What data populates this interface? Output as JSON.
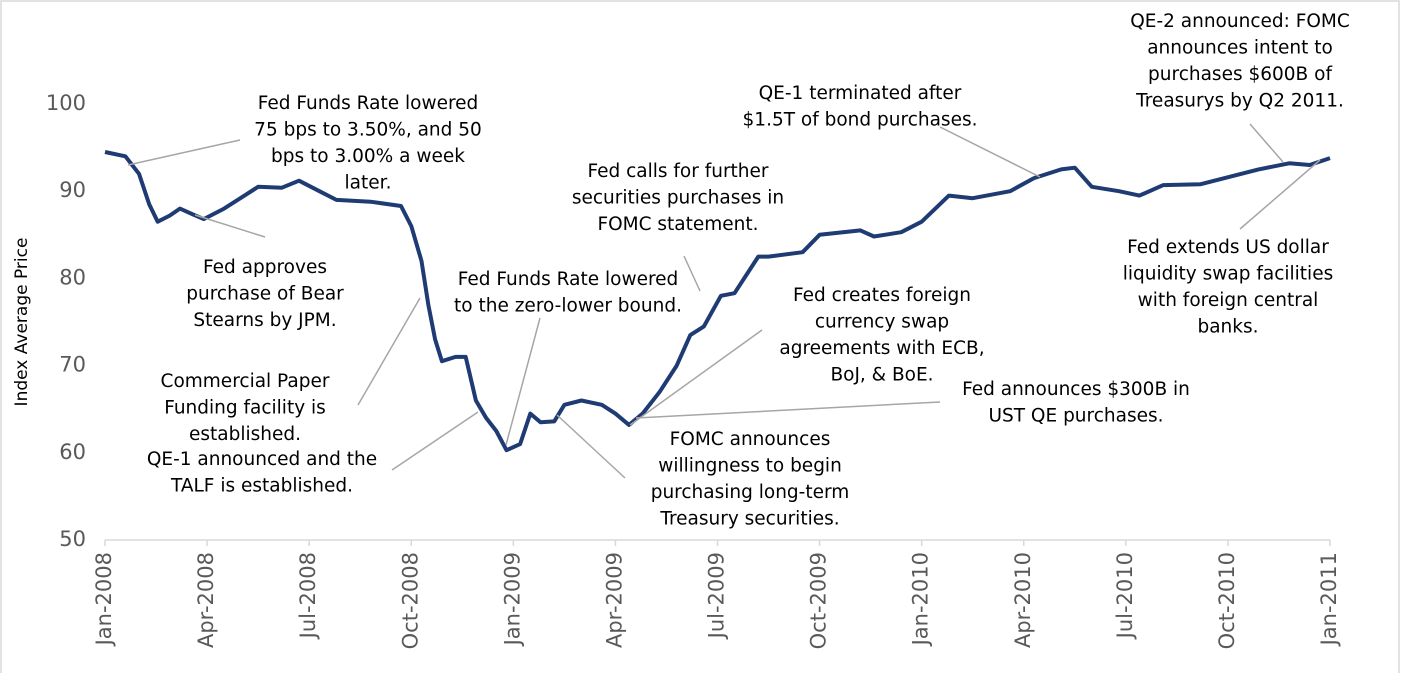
{
  "chart_data": {
    "type": "line",
    "ylabel": "Index Average Price",
    "color": "#1f3b73",
    "xlim": [
      0,
      36
    ],
    "xticks": [
      {
        "value": 0,
        "label": "Jan-2008"
      },
      {
        "value": 3,
        "label": "Apr-2008"
      },
      {
        "value": 6,
        "label": "Jul-2008"
      },
      {
        "value": 9,
        "label": "Oct-2008"
      },
      {
        "value": 12,
        "label": "Jan-2009"
      },
      {
        "value": 15,
        "label": "Apr-2009"
      },
      {
        "value": 18,
        "label": "Jul-2009"
      },
      {
        "value": 21,
        "label": "Oct-2009"
      },
      {
        "value": 24,
        "label": "Jan-2010"
      },
      {
        "value": 27,
        "label": "Apr-2010"
      },
      {
        "value": 30,
        "label": "Jul-2010"
      },
      {
        "value": 33,
        "label": "Oct-2010"
      },
      {
        "value": 36,
        "label": "Jan-2011"
      }
    ],
    "ylim": [
      50,
      100
    ],
    "yticks": [
      50,
      60,
      70,
      80,
      90,
      100
    ],
    "grid": false,
    "x": [
      0,
      0.6,
      1.0,
      1.3,
      1.55,
      1.9,
      2.2,
      2.6,
      2.9,
      3.5,
      4.1,
      4.5,
      5.2,
      5.7,
      6.3,
      6.8,
      7.8,
      8.7,
      9.0,
      9.3,
      9.5,
      9.7,
      9.9,
      10.3,
      10.6,
      10.9,
      11.2,
      11.5,
      11.8,
      12.2,
      12.5,
      12.8,
      13.2,
      13.5,
      14.0,
      14.6,
      15.0,
      15.4,
      15.8,
      16.3,
      16.8,
      17.2,
      17.6,
      18.1,
      18.5,
      19.2,
      19.5,
      20.5,
      21.0,
      22.2,
      22.6,
      23.4,
      24.0,
      24.8,
      25.5,
      26.6,
      27.3,
      28.1,
      28.5,
      29.0,
      29.8,
      30.4,
      31.1,
      32.2,
      33.9,
      34.8,
      35.4,
      36.0
    ],
    "values": [
      94.5,
      94,
      92,
      88.5,
      86.5,
      87.2,
      88,
      87.3,
      86.8,
      88,
      89.5,
      90.5,
      90.4,
      91.2,
      90,
      89,
      88.8,
      88.3,
      86,
      82,
      77,
      73,
      70.5,
      71,
      71,
      66,
      64,
      62.5,
      60.3,
      61,
      64.5,
      63.5,
      63.6,
      65.5,
      66,
      65.5,
      64.5,
      63.2,
      64.5,
      67,
      70,
      73.5,
      74.5,
      78,
      78.3,
      82.5,
      82.5,
      83,
      85,
      85.5,
      84.8,
      85.3,
      86.5,
      89.5,
      89.2,
      90,
      91.5,
      92.5,
      92.7,
      90.5,
      90,
      89.5,
      90.7,
      90.8,
      92.5,
      93.2,
      93,
      93.8
    ],
    "annotations": [
      [
        "Fed Funds Rate lowered",
        "75 bps to 3.50%, and 50",
        "bps to 3.00% a week",
        "later."
      ],
      [
        "Fed approves",
        "purchase of Bear",
        "Stearns by JPM."
      ],
      [
        "Commercial Paper",
        "Funding facility is",
        "established."
      ],
      [
        "QE-1 announced and the",
        "TALF is established."
      ],
      [
        "Fed Funds Rate lowered",
        "to the zero-lower bound."
      ],
      [
        "Fed calls for further",
        "securities purchases in",
        "FOMC statement."
      ],
      [
        "Fed creates foreign",
        "currency swap",
        "agreements with ECB,",
        "BoJ, & BoE."
      ],
      [
        "Fed announces $300B in",
        "UST QE purchases."
      ],
      [
        "FOMC announces",
        "willingness to begin",
        "purchasing long-term",
        "Treasury securities."
      ],
      [
        "QE-1 terminated after",
        "$1.5T of bond purchases."
      ],
      [
        "QE-2 announced: FOMC",
        "announces intent to",
        "purchases $600B of",
        "Treasurys by Q2 2011."
      ],
      [
        "Fed extends US dollar",
        "liquidity swap facilities",
        "with foreign central",
        "banks."
      ]
    ]
  }
}
